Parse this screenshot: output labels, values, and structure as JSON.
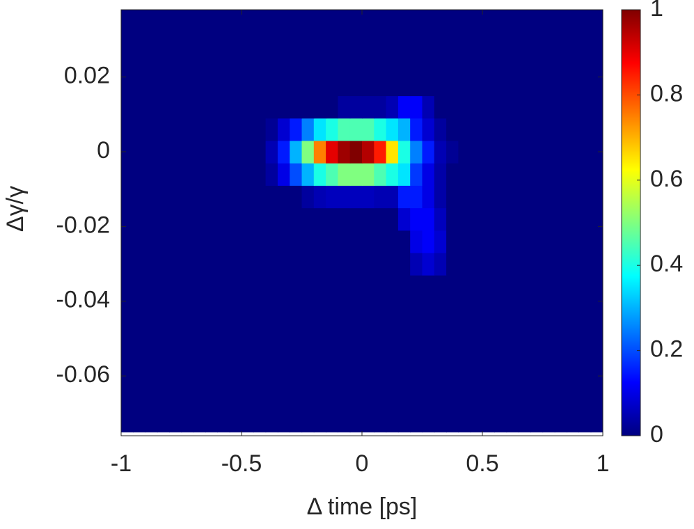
{
  "chart_data": {
    "type": "heatmap",
    "xlabel": "Δ time [ps]",
    "ylabel": "Δγ/γ",
    "xlim": [
      -1,
      1
    ],
    "xticks": [
      -1,
      -0.5,
      0,
      0.5,
      1
    ],
    "ylim": [
      -0.076,
      0.038
    ],
    "yticks": [
      -0.06,
      -0.04,
      -0.02,
      0,
      0.02
    ],
    "colormap": "jet",
    "colorbar": {
      "lim": [
        0,
        1
      ],
      "ticks": [
        0,
        0.2,
        0.4,
        0.6,
        0.8,
        1
      ]
    },
    "x": [
      -0.975,
      -0.925,
      -0.875,
      -0.825,
      -0.775,
      -0.725,
      -0.675,
      -0.625,
      -0.575,
      -0.525,
      -0.475,
      -0.425,
      -0.375,
      -0.325,
      -0.275,
      -0.225,
      -0.175,
      -0.125,
      -0.075,
      -0.025,
      0.025,
      0.075,
      0.125,
      0.175,
      0.225,
      0.275,
      0.325,
      0.375,
      0.425,
      0.475,
      0.525,
      0.575,
      0.625,
      0.675,
      0.725,
      0.775,
      0.825,
      0.875,
      0.925,
      0.975
    ],
    "y": [
      -0.072,
      -0.066,
      -0.06,
      -0.054,
      -0.048,
      -0.042,
      -0.036,
      -0.03,
      -0.024,
      -0.018,
      -0.012,
      -0.006,
      0,
      0.006,
      0.012,
      0.018,
      0.024,
      0.03,
      0.036
    ],
    "z": [
      [
        0,
        0,
        0,
        0,
        0,
        0,
        0,
        0,
        0,
        0,
        0,
        0,
        0,
        0,
        0,
        0,
        0,
        0,
        0,
        0,
        0,
        0,
        0,
        0,
        0,
        0,
        0,
        0,
        0,
        0,
        0,
        0,
        0,
        0,
        0,
        0,
        0,
        0,
        0,
        0
      ],
      [
        0,
        0,
        0,
        0,
        0,
        0,
        0,
        0,
        0,
        0,
        0,
        0,
        0,
        0,
        0,
        0,
        0,
        0,
        0,
        0,
        0,
        0,
        0,
        0,
        0,
        0,
        0,
        0,
        0,
        0,
        0,
        0,
        0,
        0,
        0,
        0,
        0,
        0,
        0,
        0
      ],
      [
        0,
        0,
        0,
        0,
        0,
        0,
        0,
        0,
        0,
        0,
        0,
        0,
        0,
        0,
        0,
        0,
        0,
        0,
        0,
        0,
        0,
        0,
        0,
        0,
        0,
        0,
        0,
        0,
        0,
        0,
        0,
        0,
        0,
        0,
        0,
        0,
        0,
        0,
        0,
        0
      ],
      [
        0,
        0,
        0,
        0,
        0,
        0,
        0,
        0,
        0,
        0,
        0,
        0,
        0,
        0,
        0,
        0,
        0,
        0,
        0,
        0,
        0,
        0,
        0,
        0,
        0,
        0,
        0,
        0,
        0,
        0,
        0,
        0,
        0,
        0,
        0,
        0,
        0,
        0,
        0,
        0
      ],
      [
        0,
        0,
        0,
        0,
        0,
        0,
        0,
        0,
        0,
        0,
        0,
        0,
        0,
        0,
        0,
        0,
        0,
        0,
        0,
        0,
        0,
        0,
        0,
        0,
        0,
        0,
        0,
        0,
        0,
        0,
        0,
        0,
        0,
        0,
        0,
        0,
        0,
        0,
        0,
        0
      ],
      [
        0,
        0,
        0,
        0,
        0,
        0,
        0,
        0,
        0,
        0,
        0,
        0,
        0,
        0,
        0,
        0,
        0,
        0,
        0,
        0,
        0,
        0,
        0,
        0,
        0,
        0,
        0,
        0,
        0,
        0,
        0,
        0,
        0,
        0,
        0,
        0,
        0,
        0,
        0,
        0
      ],
      [
        0,
        0,
        0,
        0,
        0,
        0,
        0,
        0,
        0,
        0,
        0,
        0,
        0,
        0,
        0,
        0,
        0,
        0,
        0,
        0,
        0,
        0,
        0,
        0,
        0,
        0,
        0,
        0,
        0,
        0,
        0,
        0,
        0,
        0,
        0,
        0,
        0,
        0,
        0,
        0
      ],
      [
        0,
        0,
        0,
        0,
        0,
        0,
        0,
        0,
        0,
        0,
        0,
        0,
        0,
        0,
        0,
        0,
        0,
        0,
        0,
        0,
        0,
        0,
        0,
        0,
        0.05,
        0.08,
        0.05,
        0,
        0,
        0,
        0,
        0,
        0,
        0,
        0,
        0,
        0,
        0,
        0,
        0
      ],
      [
        0,
        0,
        0,
        0,
        0,
        0,
        0,
        0,
        0,
        0,
        0,
        0,
        0,
        0,
        0,
        0,
        0,
        0,
        0,
        0,
        0,
        0,
        0,
        0,
        0.1,
        0.12,
        0.08,
        0,
        0,
        0,
        0,
        0,
        0,
        0,
        0,
        0,
        0,
        0,
        0,
        0
      ],
      [
        0,
        0,
        0,
        0,
        0,
        0,
        0,
        0,
        0,
        0,
        0,
        0,
        0,
        0,
        0,
        0,
        0,
        0,
        0,
        0,
        0,
        0,
        0,
        0.08,
        0.12,
        0.12,
        0.06,
        0,
        0,
        0,
        0,
        0,
        0,
        0,
        0,
        0,
        0,
        0,
        0,
        0
      ],
      [
        0,
        0,
        0,
        0,
        0,
        0,
        0,
        0,
        0,
        0,
        0,
        0,
        0,
        0,
        0,
        0.03,
        0.05,
        0.06,
        0.06,
        0.06,
        0.06,
        0.05,
        0.05,
        0.15,
        0.15,
        0.1,
        0.04,
        0,
        0,
        0,
        0,
        0,
        0,
        0,
        0,
        0,
        0,
        0,
        0,
        0
      ],
      [
        0,
        0,
        0,
        0,
        0,
        0,
        0,
        0,
        0,
        0,
        0,
        0,
        0.03,
        0.1,
        0.2,
        0.3,
        0.4,
        0.45,
        0.5,
        0.5,
        0.5,
        0.45,
        0.4,
        0.35,
        0.18,
        0.1,
        0.04,
        0,
        0,
        0,
        0,
        0,
        0,
        0,
        0,
        0,
        0,
        0,
        0,
        0
      ],
      [
        0,
        0,
        0,
        0,
        0,
        0,
        0,
        0,
        0,
        0,
        0,
        0,
        0.05,
        0.15,
        0.3,
        0.5,
        0.75,
        0.9,
        0.97,
        1,
        0.95,
        0.85,
        0.65,
        0.4,
        0.25,
        0.15,
        0.05,
        0.02,
        0,
        0,
        0,
        0,
        0,
        0,
        0,
        0,
        0,
        0,
        0,
        0
      ],
      [
        0,
        0,
        0,
        0,
        0,
        0,
        0,
        0,
        0,
        0,
        0,
        0,
        0.02,
        0.08,
        0.15,
        0.25,
        0.35,
        0.4,
        0.45,
        0.45,
        0.45,
        0.4,
        0.35,
        0.3,
        0.15,
        0.08,
        0.03,
        0,
        0,
        0,
        0,
        0,
        0,
        0,
        0,
        0,
        0,
        0,
        0,
        0
      ],
      [
        0,
        0,
        0,
        0,
        0,
        0,
        0,
        0,
        0,
        0,
        0,
        0,
        0,
        0,
        0,
        0,
        0,
        0,
        0.03,
        0.03,
        0.03,
        0.03,
        0.05,
        0.12,
        0.12,
        0.05,
        0,
        0,
        0,
        0,
        0,
        0,
        0,
        0,
        0,
        0,
        0,
        0,
        0,
        0
      ],
      [
        0,
        0,
        0,
        0,
        0,
        0,
        0,
        0,
        0,
        0,
        0,
        0,
        0,
        0,
        0,
        0,
        0,
        0,
        0,
        0,
        0,
        0,
        0,
        0,
        0,
        0,
        0,
        0,
        0,
        0,
        0,
        0,
        0,
        0,
        0,
        0,
        0,
        0,
        0,
        0
      ],
      [
        0,
        0,
        0,
        0,
        0,
        0,
        0,
        0,
        0,
        0,
        0,
        0,
        0,
        0,
        0,
        0,
        0,
        0,
        0,
        0,
        0,
        0,
        0,
        0,
        0,
        0,
        0,
        0,
        0,
        0,
        0,
        0,
        0,
        0,
        0,
        0,
        0,
        0,
        0,
        0
      ],
      [
        0,
        0,
        0,
        0,
        0,
        0,
        0,
        0,
        0,
        0,
        0,
        0,
        0,
        0,
        0,
        0,
        0,
        0,
        0,
        0,
        0,
        0,
        0,
        0,
        0,
        0,
        0,
        0,
        0,
        0,
        0,
        0,
        0,
        0,
        0,
        0,
        0,
        0,
        0,
        0
      ],
      [
        0,
        0,
        0,
        0,
        0,
        0,
        0,
        0,
        0,
        0,
        0,
        0,
        0,
        0,
        0,
        0,
        0,
        0,
        0,
        0,
        0,
        0,
        0,
        0,
        0,
        0,
        0,
        0,
        0,
        0,
        0,
        0,
        0,
        0,
        0,
        0,
        0,
        0,
        0,
        0
      ]
    ]
  }
}
